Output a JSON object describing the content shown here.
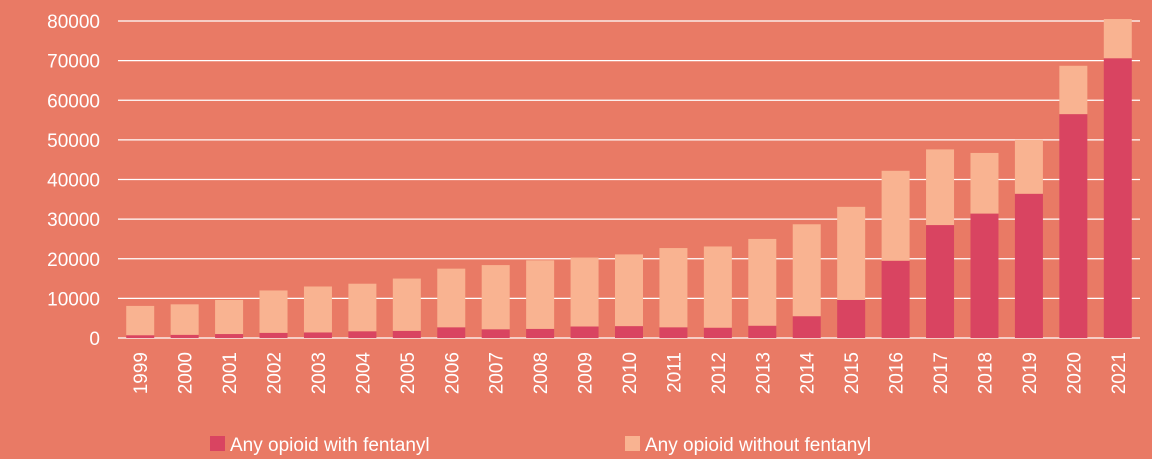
{
  "chart_data": {
    "type": "bar",
    "stacked": true,
    "title": "",
    "xlabel": "",
    "ylabel": "",
    "ylim": [
      0,
      80000
    ],
    "yticks": [
      0,
      10000,
      20000,
      30000,
      40000,
      50000,
      60000,
      70000,
      80000
    ],
    "grid": true,
    "legend_position": "bottom",
    "categories": [
      "1999",
      "2000",
      "2001",
      "2002",
      "2003",
      "2004",
      "2005",
      "2006",
      "2007",
      "2008",
      "2009",
      "2010",
      "2011",
      "2012",
      "2013",
      "2014",
      "2015",
      "2016",
      "2017",
      "2018",
      "2019",
      "2020",
      "2021"
    ],
    "series": [
      {
        "name": "Any opioid with fentanyl",
        "color": "#d94461",
        "values": [
          700,
          800,
          1000,
          1300,
          1400,
          1700,
          1800,
          2700,
          2200,
          2300,
          2900,
          3000,
          2700,
          2600,
          3100,
          5500,
          9600,
          19500,
          28500,
          31400,
          36400,
          56500,
          70600
        ]
      },
      {
        "name": "Any opioid without fentanyl",
        "color": "#f9b391",
        "values": [
          7400,
          7700,
          8600,
          10700,
          11600,
          12000,
          13200,
          14800,
          16200,
          17300,
          17400,
          18100,
          20000,
          20500,
          21900,
          23200,
          23500,
          22700,
          19100,
          15300,
          13600,
          12200,
          9900
        ]
      }
    ],
    "colors": {
      "background": "#e97a65",
      "gridline": "#ffffff",
      "text": "#ffffff"
    }
  }
}
